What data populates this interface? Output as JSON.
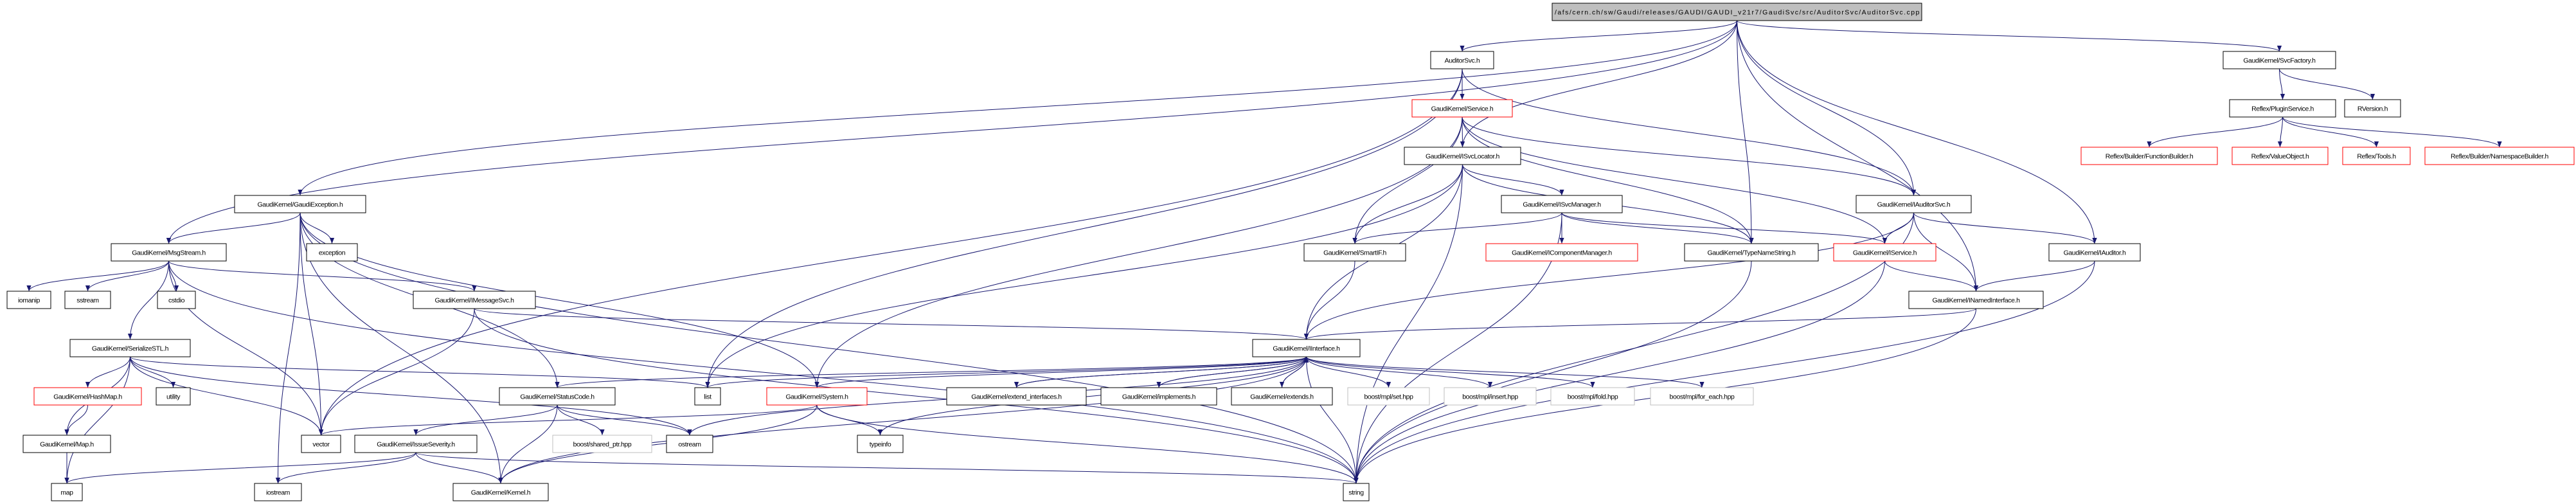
{
  "colors": {
    "edge": "#191970",
    "root_fill": "#bfbfbf",
    "undocumented_border": "#ff0000",
    "external_border": "#bfbfbf",
    "normal_border": "#000000"
  },
  "nodes": {
    "root": {
      "label": "/afs/cern.ch/sw/Gaudi/releases/GAUDI/GAUDI_v21r7/GaudiSvc/src/AuditorSvc/AuditorSvc.cpp",
      "kind": "root"
    },
    "auditorsvc": {
      "label": "AuditorSvc.h",
      "kind": "normal"
    },
    "svcfactory": {
      "label": "GaudiKernel/SvcFactory.h",
      "kind": "normal"
    },
    "service": {
      "label": "GaudiKernel/Service.h",
      "kind": "undoc"
    },
    "pluginservice": {
      "label": "Reflex/PluginService.h",
      "kind": "normal"
    },
    "rversion": {
      "label": "RVersion.h",
      "kind": "normal"
    },
    "isvclocator": {
      "label": "GaudiKernel/ISvcLocator.h",
      "kind": "normal"
    },
    "funcbuilder": {
      "label": "Reflex/Builder/FunctionBuilder.h",
      "kind": "undoc"
    },
    "valueobject": {
      "label": "Reflex/ValueObject.h",
      "kind": "undoc"
    },
    "tools": {
      "label": "Reflex/Tools.h",
      "kind": "undoc"
    },
    "nsbuilder": {
      "label": "Reflex/Builder/NamespaceBuilder.h",
      "kind": "undoc"
    },
    "gaudiexception": {
      "label": "GaudiKernel/GaudiException.h",
      "kind": "normal"
    },
    "isvcmanager": {
      "label": "GaudiKernel/ISvcManager.h",
      "kind": "normal"
    },
    "iauditorsvc": {
      "label": "GaudiKernel/IAuditorSvc.h",
      "kind": "normal"
    },
    "msgstream": {
      "label": "GaudiKernel/MsgStream.h",
      "kind": "normal"
    },
    "exception": {
      "label": "exception",
      "kind": "normal"
    },
    "smartif": {
      "label": "GaudiKernel/SmartIF.h",
      "kind": "normal"
    },
    "icompmgr": {
      "label": "GaudiKernel/IComponentManager.h",
      "kind": "undoc"
    },
    "typenamestring": {
      "label": "GaudiKernel/TypeNameString.h",
      "kind": "normal"
    },
    "iservice": {
      "label": "GaudiKernel/IService.h",
      "kind": "undoc"
    },
    "iauditor": {
      "label": "GaudiKernel/IAuditor.h",
      "kind": "normal"
    },
    "iomanip": {
      "label": "iomanip",
      "kind": "normal"
    },
    "sstream": {
      "label": "sstream",
      "kind": "normal"
    },
    "cstdio": {
      "label": "cstdio",
      "kind": "normal"
    },
    "imessagesvc": {
      "label": "GaudiKernel/IMessageSvc.h",
      "kind": "normal"
    },
    "inamedinterface": {
      "label": "GaudiKernel/INamedInterface.h",
      "kind": "normal"
    },
    "serializestl": {
      "label": "GaudiKernel/SerializeSTL.h",
      "kind": "normal"
    },
    "iinterface": {
      "label": "GaudiKernel/IInterface.h",
      "kind": "normal"
    },
    "hashmap": {
      "label": "GaudiKernel/HashMap.h",
      "kind": "undoc"
    },
    "utility": {
      "label": "utility",
      "kind": "normal"
    },
    "statuscode": {
      "label": "GaudiKernel/StatusCode.h",
      "kind": "normal"
    },
    "list": {
      "label": "list",
      "kind": "normal"
    },
    "system": {
      "label": "GaudiKernel/System.h",
      "kind": "undoc"
    },
    "extendif": {
      "label": "GaudiKernel/extend_interfaces.h",
      "kind": "normal"
    },
    "implements": {
      "label": "GaudiKernel/implements.h",
      "kind": "normal"
    },
    "extends": {
      "label": "GaudiKernel/extends.h",
      "kind": "normal"
    },
    "mplset": {
      "label": "boost/mpl/set.hpp",
      "kind": "ext"
    },
    "mplinsert": {
      "label": "boost/mpl/insert.hpp",
      "kind": "ext"
    },
    "mplfold": {
      "label": "boost/mpl/fold.hpp",
      "kind": "ext"
    },
    "mplforeach": {
      "label": "boost/mpl/for_each.hpp",
      "kind": "ext"
    },
    "maph": {
      "label": "GaudiKernel/Map.h",
      "kind": "normal"
    },
    "vector": {
      "label": "vector",
      "kind": "normal"
    },
    "issueseverity": {
      "label": "GaudiKernel/IssueSeverity.h",
      "kind": "normal"
    },
    "sharedptr": {
      "label": "boost/shared_ptr.hpp",
      "kind": "ext"
    },
    "ostream": {
      "label": "ostream",
      "kind": "normal"
    },
    "typeinfo": {
      "label": "typeinfo",
      "kind": "normal"
    },
    "map": {
      "label": "map",
      "kind": "normal"
    },
    "iostream": {
      "label": "iostream",
      "kind": "normal"
    },
    "kernel": {
      "label": "GaudiKernel/Kernel.h",
      "kind": "normal"
    },
    "string": {
      "label": "string",
      "kind": "normal"
    }
  },
  "edges": [
    [
      "root",
      "auditorsvc"
    ],
    [
      "root",
      "svcfactory"
    ],
    [
      "root",
      "isvclocator"
    ],
    [
      "root",
      "msgstream"
    ],
    [
      "root",
      "gaudiexception"
    ],
    [
      "root",
      "typenamestring"
    ],
    [
      "root",
      "iauditorsvc"
    ],
    [
      "root",
      "iauditor"
    ],
    [
      "root",
      "inamedinterface"
    ],
    [
      "auditorsvc",
      "service"
    ],
    [
      "auditorsvc",
      "iauditorsvc"
    ],
    [
      "auditorsvc",
      "list"
    ],
    [
      "auditorsvc",
      "vector"
    ],
    [
      "service",
      "isvclocator"
    ],
    [
      "service",
      "iservice"
    ],
    [
      "service",
      "smartif"
    ],
    [
      "service",
      "iauditorsvc"
    ],
    [
      "service",
      "typenamestring"
    ],
    [
      "service",
      "system"
    ],
    [
      "svcfactory",
      "pluginservice"
    ],
    [
      "svcfactory",
      "rversion"
    ],
    [
      "pluginservice",
      "funcbuilder"
    ],
    [
      "pluginservice",
      "valueobject"
    ],
    [
      "pluginservice",
      "tools"
    ],
    [
      "pluginservice",
      "nsbuilder"
    ],
    [
      "isvclocator",
      "isvcmanager"
    ],
    [
      "isvclocator",
      "smartif"
    ],
    [
      "isvclocator",
      "typenamestring"
    ],
    [
      "isvclocator",
      "iinterface"
    ],
    [
      "isvclocator",
      "list"
    ],
    [
      "isvclocator",
      "string"
    ],
    [
      "isvcmanager",
      "smartif"
    ],
    [
      "isvcmanager",
      "icompmgr"
    ],
    [
      "isvcmanager",
      "typenamestring"
    ],
    [
      "isvcmanager",
      "iservice"
    ],
    [
      "isvcmanager",
      "string"
    ],
    [
      "iauditorsvc",
      "iservice"
    ],
    [
      "iauditorsvc",
      "iauditor"
    ],
    [
      "iauditorsvc",
      "inamedinterface"
    ],
    [
      "iauditorsvc",
      "iinterface"
    ],
    [
      "iauditorsvc",
      "string"
    ],
    [
      "smartif",
      "iinterface"
    ],
    [
      "iservice",
      "inamedinterface"
    ],
    [
      "iservice",
      "string"
    ],
    [
      "iauditor",
      "inamedinterface"
    ],
    [
      "iauditor",
      "string"
    ],
    [
      "inamedinterface",
      "iinterface"
    ],
    [
      "inamedinterface",
      "string"
    ],
    [
      "typenamestring",
      "string"
    ],
    [
      "gaudiexception",
      "msgstream"
    ],
    [
      "gaudiexception",
      "exception"
    ],
    [
      "gaudiexception",
      "statuscode"
    ],
    [
      "gaudiexception",
      "system"
    ],
    [
      "gaudiexception",
      "iostream"
    ],
    [
      "gaudiexception",
      "vector"
    ],
    [
      "gaudiexception",
      "kernel"
    ],
    [
      "gaudiexception",
      "string"
    ],
    [
      "msgstream",
      "iomanip"
    ],
    [
      "msgstream",
      "sstream"
    ],
    [
      "msgstream",
      "cstdio"
    ],
    [
      "msgstream",
      "serializestl"
    ],
    [
      "msgstream",
      "vector"
    ],
    [
      "msgstream",
      "imessagesvc"
    ],
    [
      "msgstream",
      "string"
    ],
    [
      "imessagesvc",
      "iinterface"
    ],
    [
      "imessagesvc",
      "vector"
    ],
    [
      "imessagesvc",
      "string"
    ],
    [
      "serializestl",
      "hashmap"
    ],
    [
      "serializestl",
      "utility"
    ],
    [
      "serializestl",
      "maph"
    ],
    [
      "serializestl",
      "map"
    ],
    [
      "serializestl",
      "vector"
    ],
    [
      "serializestl",
      "list"
    ],
    [
      "serializestl",
      "ostream"
    ],
    [
      "hashmap",
      "maph"
    ],
    [
      "maph",
      "map"
    ],
    [
      "statuscode",
      "issueseverity"
    ],
    [
      "statuscode",
      "kernel"
    ],
    [
      "statuscode",
      "sharedptr"
    ],
    [
      "statuscode",
      "ostream"
    ],
    [
      "issueseverity",
      "map"
    ],
    [
      "issueseverity",
      "iostream"
    ],
    [
      "issueseverity",
      "kernel"
    ],
    [
      "issueseverity",
      "string"
    ],
    [
      "iinterface",
      "statuscode"
    ],
    [
      "iinterface",
      "list"
    ],
    [
      "iinterface",
      "system"
    ],
    [
      "iinterface",
      "extendif"
    ],
    [
      "iinterface",
      "implements"
    ],
    [
      "iinterface",
      "extends"
    ],
    [
      "iinterface",
      "mplset"
    ],
    [
      "iinterface",
      "mplinsert"
    ],
    [
      "iinterface",
      "mplfold"
    ],
    [
      "iinterface",
      "mplforeach"
    ],
    [
      "iinterface",
      "ostream"
    ],
    [
      "iinterface",
      "typeinfo"
    ],
    [
      "iinterface",
      "kernel"
    ],
    [
      "iinterface",
      "string"
    ],
    [
      "extendif",
      "iinterface"
    ],
    [
      "implements",
      "iinterface"
    ],
    [
      "extends",
      "iinterface"
    ],
    [
      "system",
      "typeinfo"
    ],
    [
      "system",
      "kernel"
    ],
    [
      "system",
      "string"
    ],
    [
      "system",
      "vector"
    ]
  ]
}
